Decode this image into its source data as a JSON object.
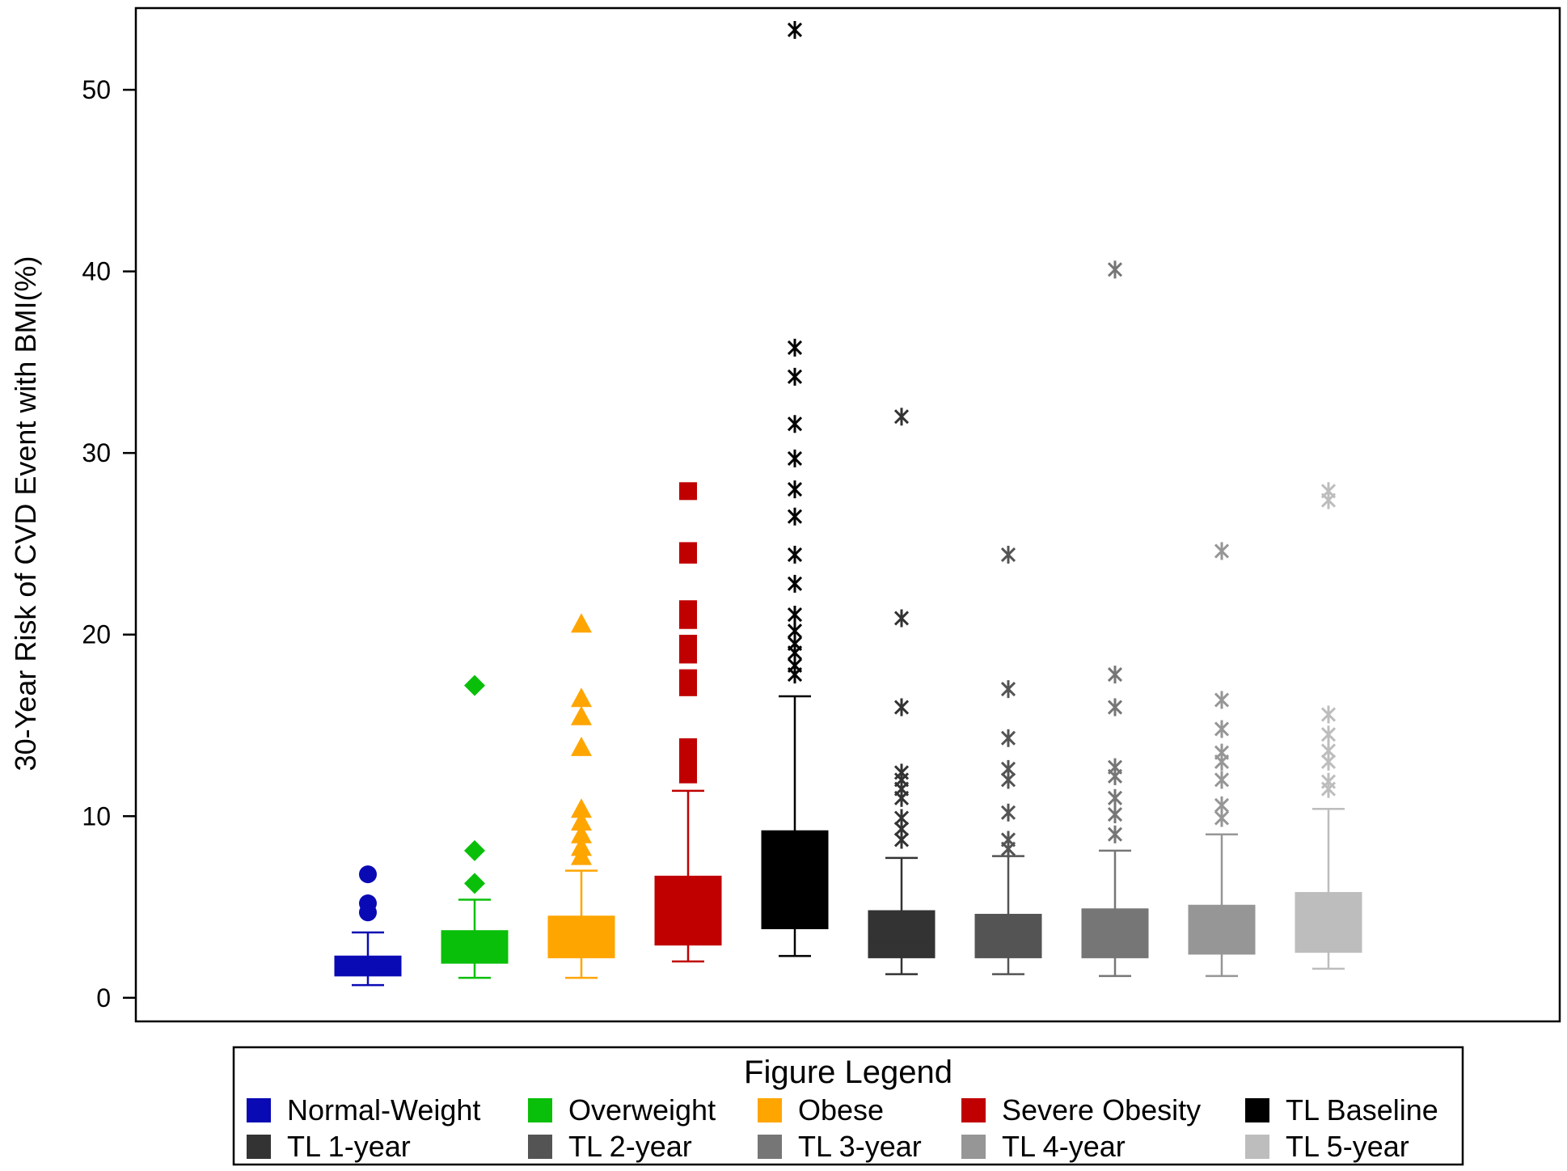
{
  "chart_data": {
    "type": "box",
    "ylabel": "30-Year Risk of CVD Event with BMI(%)",
    "ylim": [
      -1.3,
      54.5
    ],
    "yticks": [
      0,
      10,
      20,
      30,
      40,
      50
    ],
    "ytick_labels": [
      "0",
      "10",
      "20",
      "30",
      "40",
      "50"
    ],
    "grid": false,
    "legend_title": "Figure Legend",
    "legend_position": "bottom",
    "categories": [
      "Normal-Weight",
      "Overweight",
      "Obese",
      "Severe Obesity",
      "TL Baseline",
      "TL 1-year",
      "TL 2-year",
      "TL 3-year",
      "TL 4-year",
      "TL 5-year"
    ],
    "series": [
      {
        "name": "Normal-Weight",
        "color": "#0A0AB4",
        "marker": "circle",
        "whisker_low": 0.7,
        "q1": 1.2,
        "median": 2.0,
        "q3": 2.3,
        "whisker_high": 3.6,
        "outliers": [
          4.7,
          5.2,
          6.8
        ]
      },
      {
        "name": "Overweight",
        "color": "#0ABF0A",
        "marker": "diamond",
        "whisker_low": 1.1,
        "q1": 1.9,
        "median": 3.0,
        "q3": 3.7,
        "whisker_high": 5.4,
        "outliers": [
          6.3,
          8.1,
          17.2
        ]
      },
      {
        "name": "Obese",
        "color": "#FFA500",
        "marker": "triangle",
        "whisker_low": 1.1,
        "q1": 2.2,
        "median": 3.3,
        "q3": 4.5,
        "whisker_high": 7.0,
        "outliers": [
          7.8,
          8.3,
          9.0,
          9.7,
          10.4,
          13.8,
          15.5,
          16.5,
          20.6
        ]
      },
      {
        "name": "Severe Obesity",
        "color": "#C00000",
        "marker": "square",
        "whisker_low": 2.0,
        "q1": 2.9,
        "median": 4.5,
        "q3": 6.7,
        "whisker_high": 11.4,
        "outliers": [
          12.3,
          12.8,
          13.3,
          13.8,
          17.1,
          17.6,
          18.9,
          19.5,
          20.8,
          21.4,
          24.4,
          24.6,
          27.9
        ]
      },
      {
        "name": "TL Baseline",
        "color": "#000000",
        "marker": "asterisk",
        "whisker_low": 2.3,
        "q1": 3.8,
        "median": 6.0,
        "q3": 9.2,
        "whisker_high": 16.6,
        "outliers": [
          17.8,
          18.3,
          19.0,
          19.5,
          20.2,
          21.1,
          22.8,
          24.4,
          26.5,
          28.0,
          29.7,
          31.6,
          34.2,
          35.8,
          53.3
        ]
      },
      {
        "name": "TL 1-year",
        "color": "#333333",
        "marker": "asterisk",
        "whisker_low": 1.3,
        "q1": 2.2,
        "median": 3.1,
        "q3": 4.8,
        "whisker_high": 7.7,
        "outliers": [
          8.7,
          9.3,
          9.9,
          11.0,
          11.5,
          12.0,
          12.4,
          16.0,
          20.9,
          32.0
        ]
      },
      {
        "name": "TL 2-year",
        "color": "#545454",
        "marker": "asterisk",
        "whisker_low": 1.3,
        "q1": 2.2,
        "median": 3.1,
        "q3": 4.6,
        "whisker_high": 7.8,
        "outliers": [
          8.2,
          8.7,
          10.2,
          12.0,
          12.6,
          14.3,
          17.0,
          24.4
        ]
      },
      {
        "name": "TL 3-year",
        "color": "#767676",
        "marker": "asterisk",
        "whisker_low": 1.2,
        "q1": 2.2,
        "median": 3.2,
        "q3": 4.9,
        "whisker_high": 8.1,
        "outliers": [
          9.0,
          10.1,
          11.0,
          12.2,
          12.7,
          16.0,
          17.8,
          40.1
        ]
      },
      {
        "name": "TL 4-year",
        "color": "#969696",
        "marker": "asterisk",
        "whisker_low": 1.2,
        "q1": 2.4,
        "median": 3.4,
        "q3": 5.1,
        "whisker_high": 9.0,
        "outliers": [
          9.9,
          10.6,
          12.0,
          13.0,
          13.5,
          14.8,
          16.4,
          24.6
        ]
      },
      {
        "name": "TL 5-year",
        "color": "#BDBDBD",
        "marker": "asterisk",
        "whisker_low": 1.6,
        "q1": 2.5,
        "median": 3.6,
        "q3": 5.8,
        "whisker_high": 10.4,
        "outliers": [
          11.5,
          11.9,
          13.0,
          13.6,
          14.5,
          15.6,
          27.4,
          27.9
        ]
      }
    ]
  }
}
